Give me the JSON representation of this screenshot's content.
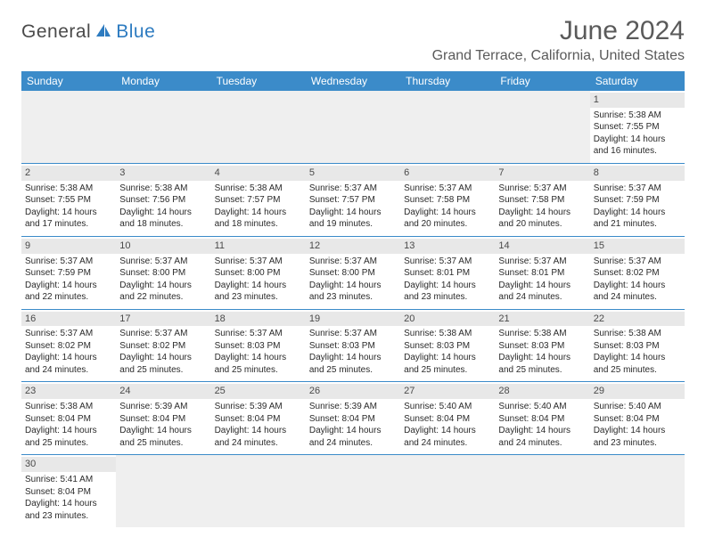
{
  "logo": {
    "text_left": "General",
    "text_right": "Blue"
  },
  "title": "June 2024",
  "location": "Grand Terrace, California, United States",
  "colors": {
    "header_blue": "#3b8bc9",
    "logo_blue": "#2d7bc0",
    "cell_gray": "#e8e8e8",
    "empty_gray": "#efefef",
    "divider": "#3b8bc9",
    "text": "#333333"
  },
  "weekdays": [
    "Sunday",
    "Monday",
    "Tuesday",
    "Wednesday",
    "Thursday",
    "Friday",
    "Saturday"
  ],
  "weeks": [
    [
      null,
      null,
      null,
      null,
      null,
      null,
      {
        "n": "1",
        "sr": "Sunrise: 5:38 AM",
        "ss": "Sunset: 7:55 PM",
        "d1": "Daylight: 14 hours",
        "d2": "and 16 minutes."
      }
    ],
    [
      {
        "n": "2",
        "sr": "Sunrise: 5:38 AM",
        "ss": "Sunset: 7:55 PM",
        "d1": "Daylight: 14 hours",
        "d2": "and 17 minutes."
      },
      {
        "n": "3",
        "sr": "Sunrise: 5:38 AM",
        "ss": "Sunset: 7:56 PM",
        "d1": "Daylight: 14 hours",
        "d2": "and 18 minutes."
      },
      {
        "n": "4",
        "sr": "Sunrise: 5:38 AM",
        "ss": "Sunset: 7:57 PM",
        "d1": "Daylight: 14 hours",
        "d2": "and 18 minutes."
      },
      {
        "n": "5",
        "sr": "Sunrise: 5:37 AM",
        "ss": "Sunset: 7:57 PM",
        "d1": "Daylight: 14 hours",
        "d2": "and 19 minutes."
      },
      {
        "n": "6",
        "sr": "Sunrise: 5:37 AM",
        "ss": "Sunset: 7:58 PM",
        "d1": "Daylight: 14 hours",
        "d2": "and 20 minutes."
      },
      {
        "n": "7",
        "sr": "Sunrise: 5:37 AM",
        "ss": "Sunset: 7:58 PM",
        "d1": "Daylight: 14 hours",
        "d2": "and 20 minutes."
      },
      {
        "n": "8",
        "sr": "Sunrise: 5:37 AM",
        "ss": "Sunset: 7:59 PM",
        "d1": "Daylight: 14 hours",
        "d2": "and 21 minutes."
      }
    ],
    [
      {
        "n": "9",
        "sr": "Sunrise: 5:37 AM",
        "ss": "Sunset: 7:59 PM",
        "d1": "Daylight: 14 hours",
        "d2": "and 22 minutes."
      },
      {
        "n": "10",
        "sr": "Sunrise: 5:37 AM",
        "ss": "Sunset: 8:00 PM",
        "d1": "Daylight: 14 hours",
        "d2": "and 22 minutes."
      },
      {
        "n": "11",
        "sr": "Sunrise: 5:37 AM",
        "ss": "Sunset: 8:00 PM",
        "d1": "Daylight: 14 hours",
        "d2": "and 23 minutes."
      },
      {
        "n": "12",
        "sr": "Sunrise: 5:37 AM",
        "ss": "Sunset: 8:00 PM",
        "d1": "Daylight: 14 hours",
        "d2": "and 23 minutes."
      },
      {
        "n": "13",
        "sr": "Sunrise: 5:37 AM",
        "ss": "Sunset: 8:01 PM",
        "d1": "Daylight: 14 hours",
        "d2": "and 23 minutes."
      },
      {
        "n": "14",
        "sr": "Sunrise: 5:37 AM",
        "ss": "Sunset: 8:01 PM",
        "d1": "Daylight: 14 hours",
        "d2": "and 24 minutes."
      },
      {
        "n": "15",
        "sr": "Sunrise: 5:37 AM",
        "ss": "Sunset: 8:02 PM",
        "d1": "Daylight: 14 hours",
        "d2": "and 24 minutes."
      }
    ],
    [
      {
        "n": "16",
        "sr": "Sunrise: 5:37 AM",
        "ss": "Sunset: 8:02 PM",
        "d1": "Daylight: 14 hours",
        "d2": "and 24 minutes."
      },
      {
        "n": "17",
        "sr": "Sunrise: 5:37 AM",
        "ss": "Sunset: 8:02 PM",
        "d1": "Daylight: 14 hours",
        "d2": "and 25 minutes."
      },
      {
        "n": "18",
        "sr": "Sunrise: 5:37 AM",
        "ss": "Sunset: 8:03 PM",
        "d1": "Daylight: 14 hours",
        "d2": "and 25 minutes."
      },
      {
        "n": "19",
        "sr": "Sunrise: 5:37 AM",
        "ss": "Sunset: 8:03 PM",
        "d1": "Daylight: 14 hours",
        "d2": "and 25 minutes."
      },
      {
        "n": "20",
        "sr": "Sunrise: 5:38 AM",
        "ss": "Sunset: 8:03 PM",
        "d1": "Daylight: 14 hours",
        "d2": "and 25 minutes."
      },
      {
        "n": "21",
        "sr": "Sunrise: 5:38 AM",
        "ss": "Sunset: 8:03 PM",
        "d1": "Daylight: 14 hours",
        "d2": "and 25 minutes."
      },
      {
        "n": "22",
        "sr": "Sunrise: 5:38 AM",
        "ss": "Sunset: 8:03 PM",
        "d1": "Daylight: 14 hours",
        "d2": "and 25 minutes."
      }
    ],
    [
      {
        "n": "23",
        "sr": "Sunrise: 5:38 AM",
        "ss": "Sunset: 8:04 PM",
        "d1": "Daylight: 14 hours",
        "d2": "and 25 minutes."
      },
      {
        "n": "24",
        "sr": "Sunrise: 5:39 AM",
        "ss": "Sunset: 8:04 PM",
        "d1": "Daylight: 14 hours",
        "d2": "and 25 minutes."
      },
      {
        "n": "25",
        "sr": "Sunrise: 5:39 AM",
        "ss": "Sunset: 8:04 PM",
        "d1": "Daylight: 14 hours",
        "d2": "and 24 minutes."
      },
      {
        "n": "26",
        "sr": "Sunrise: 5:39 AM",
        "ss": "Sunset: 8:04 PM",
        "d1": "Daylight: 14 hours",
        "d2": "and 24 minutes."
      },
      {
        "n": "27",
        "sr": "Sunrise: 5:40 AM",
        "ss": "Sunset: 8:04 PM",
        "d1": "Daylight: 14 hours",
        "d2": "and 24 minutes."
      },
      {
        "n": "28",
        "sr": "Sunrise: 5:40 AM",
        "ss": "Sunset: 8:04 PM",
        "d1": "Daylight: 14 hours",
        "d2": "and 24 minutes."
      },
      {
        "n": "29",
        "sr": "Sunrise: 5:40 AM",
        "ss": "Sunset: 8:04 PM",
        "d1": "Daylight: 14 hours",
        "d2": "and 23 minutes."
      }
    ],
    [
      {
        "n": "30",
        "sr": "Sunrise: 5:41 AM",
        "ss": "Sunset: 8:04 PM",
        "d1": "Daylight: 14 hours",
        "d2": "and 23 minutes."
      },
      null,
      null,
      null,
      null,
      null,
      null
    ]
  ]
}
